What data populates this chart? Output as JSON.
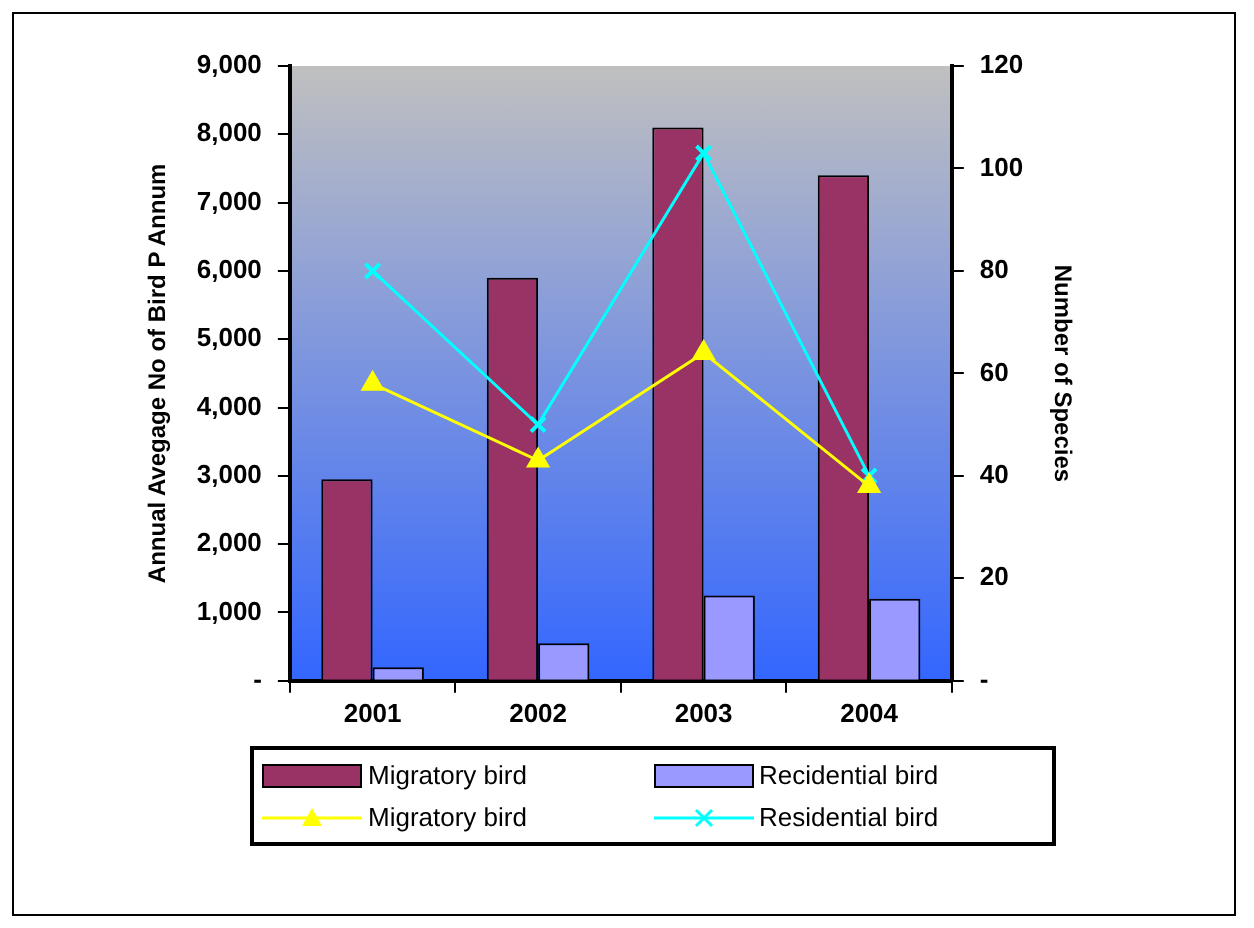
{
  "chart_data": {
    "type": "bar",
    "categories": [
      "2001",
      "2002",
      "2003",
      "2004"
    ],
    "ylabel": "Annual Avegage No of Bird P Annum",
    "y2label": "Number of Species",
    "ylim": [
      0,
      9000
    ],
    "yticks": [
      {
        "value": 0,
        "label": "-"
      },
      {
        "value": 1000,
        "label": "1,000"
      },
      {
        "value": 2000,
        "label": "2,000"
      },
      {
        "value": 3000,
        "label": "3,000"
      },
      {
        "value": 4000,
        "label": "4,000"
      },
      {
        "value": 5000,
        "label": "5,000"
      },
      {
        "value": 6000,
        "label": "6,000"
      },
      {
        "value": 7000,
        "label": "7,000"
      },
      {
        "value": 8000,
        "label": "8,000"
      },
      {
        "value": 9000,
        "label": "9,000"
      }
    ],
    "y2lim": [
      0,
      120
    ],
    "y2ticks": [
      {
        "value": 0,
        "label": "-"
      },
      20,
      40,
      60,
      80,
      100,
      120
    ],
    "grid": false,
    "legend": "bottom",
    "series": [
      {
        "name": "Migratory bird",
        "color": "#993366",
        "values": [
          2950,
          5900,
          8100,
          7400
        ]
      },
      {
        "name": "Recidential bird",
        "color": "#9999ff",
        "values": [
          200,
          550,
          1250,
          1200
        ]
      },
      {
        "name": "Migratory bird",
        "type": "line",
        "axis": "y2",
        "color": "#ffff00",
        "marker": "triangle",
        "values": [
          58,
          43,
          64,
          38
        ]
      },
      {
        "name": "Residential bird",
        "type": "line",
        "axis": "y2",
        "color": "#00ffff",
        "marker": "cross",
        "values": [
          80,
          50,
          103,
          40
        ]
      }
    ]
  }
}
